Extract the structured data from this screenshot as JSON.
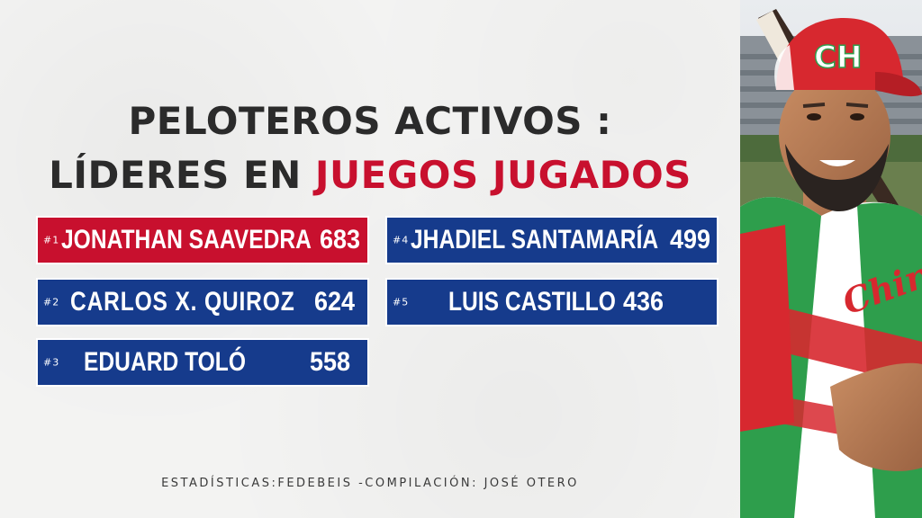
{
  "title": {
    "line1": "PELOTEROS ACTIVOS :",
    "line2_prefix": "LÍDERES EN",
    "line2_accent": "JUEGOS JUGADOS"
  },
  "leaders": [
    {
      "rank": "#1",
      "name": "JONATHAN SAAVEDRA",
      "games": "683"
    },
    {
      "rank": "#2",
      "name": "CARLOS X. QUIROZ",
      "games": "624"
    },
    {
      "rank": "#3",
      "name": "EDUARD TOLÓ",
      "games": "558"
    },
    {
      "rank": "#4",
      "name": "JHADIEL SANTAMARÍA",
      "games": "499"
    },
    {
      "rank": "#5",
      "name": "LUIS CASTILLO",
      "games": "436"
    }
  ],
  "footer": "ESTADÍSTICAS:FEDEBEIS -COMPILACIÓN: JOSÉ OTERO",
  "photo": {
    "cap_letters": "CH",
    "jersey_text": "Chiriquí"
  },
  "colors": {
    "accent_red": "#c8102e",
    "card_blue": "#163b8c",
    "title_dark": "#2b2b2b"
  }
}
